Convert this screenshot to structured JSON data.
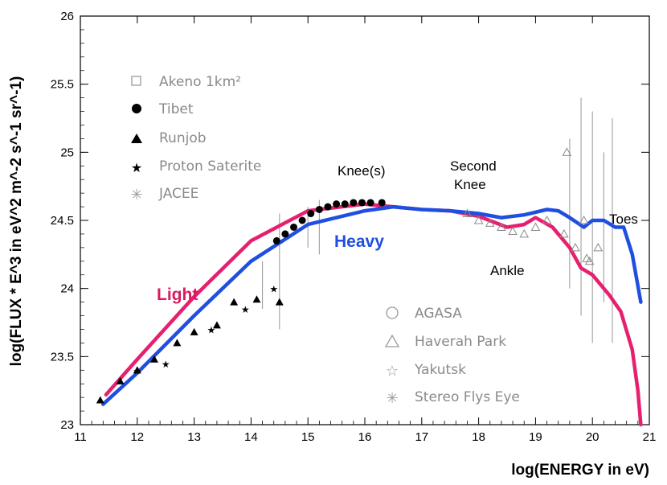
{
  "chart_data": {
    "type": "line",
    "xlabel": "log(ENERGY in eV)",
    "ylabel": "log(FLUX * E^3 in eV^2 m^-2 s^-1 sr^-1)",
    "xlim": [
      11,
      21
    ],
    "ylim": [
      23,
      26
    ],
    "x_ticks": [
      "11",
      "12",
      "13",
      "14",
      "15",
      "16",
      "17",
      "18",
      "19",
      "20",
      "21"
    ],
    "y_ticks": [
      "23",
      "23.5",
      "24",
      "24.5",
      "25",
      "25.5",
      "26"
    ],
    "series": [
      {
        "name": "Light",
        "color": "#e6206e",
        "points": [
          [
            11.45,
            23.22
          ],
          [
            12,
            23.48
          ],
          [
            13,
            23.94
          ],
          [
            14,
            24.35
          ],
          [
            15,
            24.57
          ],
          [
            16,
            24.62
          ],
          [
            16.5,
            24.6
          ],
          [
            17,
            24.58
          ],
          [
            17.5,
            24.57
          ],
          [
            18,
            24.53
          ],
          [
            18.5,
            24.45
          ],
          [
            18.8,
            24.47
          ],
          [
            19,
            24.52
          ],
          [
            19.3,
            24.45
          ],
          [
            19.6,
            24.3
          ],
          [
            19.8,
            24.15
          ],
          [
            20,
            24.1
          ],
          [
            20.3,
            23.95
          ],
          [
            20.5,
            23.83
          ],
          [
            20.7,
            23.55
          ],
          [
            20.8,
            23.25
          ],
          [
            20.85,
            23.0
          ]
        ]
      },
      {
        "name": "Heavy",
        "color": "#1f4fe0",
        "points": [
          [
            11.4,
            23.15
          ],
          [
            12,
            23.38
          ],
          [
            13,
            23.8
          ],
          [
            14,
            24.2
          ],
          [
            15,
            24.47
          ],
          [
            16,
            24.57
          ],
          [
            16.5,
            24.6
          ],
          [
            17,
            24.58
          ],
          [
            17.5,
            24.57
          ],
          [
            18,
            24.55
          ],
          [
            18.4,
            24.52
          ],
          [
            18.8,
            24.54
          ],
          [
            19.2,
            24.58
          ],
          [
            19.4,
            24.57
          ],
          [
            19.6,
            24.52
          ],
          [
            19.85,
            24.45
          ],
          [
            20,
            24.5
          ],
          [
            20.2,
            24.5
          ],
          [
            20.4,
            24.45
          ],
          [
            20.55,
            24.45
          ],
          [
            20.7,
            24.25
          ],
          [
            20.85,
            23.9
          ]
        ]
      }
    ],
    "legend_upper": [
      "Akeno 1km²",
      "Tibet",
      "Runjob",
      "Proton Saterite",
      "JACEE"
    ],
    "legend_lower": [
      "AGASA",
      "Haverah Park",
      "Yakutsk",
      "Stereo Flys Eye"
    ],
    "annotations": [
      "Knee(s)",
      "Second",
      "Knee",
      "Ankle",
      "Toes",
      "Light",
      "Heavy"
    ],
    "tibet_points": [
      [
        14.45,
        24.35
      ],
      [
        14.6,
        24.4
      ],
      [
        14.75,
        24.45
      ],
      [
        14.9,
        24.5
      ],
      [
        15.05,
        24.55
      ],
      [
        15.2,
        24.58
      ],
      [
        15.35,
        24.6
      ],
      [
        15.5,
        24.62
      ],
      [
        15.65,
        24.62
      ],
      [
        15.8,
        24.63
      ],
      [
        15.95,
        24.63
      ],
      [
        16.1,
        24.63
      ],
      [
        16.3,
        24.63
      ]
    ],
    "runjob_points": [
      [
        11.35,
        23.18
      ],
      [
        11.7,
        23.32
      ],
      [
        12,
        23.4
      ],
      [
        12.3,
        23.48
      ],
      [
        12.7,
        23.6
      ],
      [
        13,
        23.68
      ],
      [
        13.4,
        23.73
      ],
      [
        13.7,
        23.9
      ],
      [
        14.1,
        23.92
      ],
      [
        14.5,
        23.9
      ]
    ],
    "proton_points": [
      [
        12,
        23.4
      ],
      [
        12.5,
        23.45
      ],
      [
        13.3,
        23.7
      ],
      [
        13.9,
        23.85
      ],
      [
        14.4,
        24.0
      ]
    ]
  }
}
